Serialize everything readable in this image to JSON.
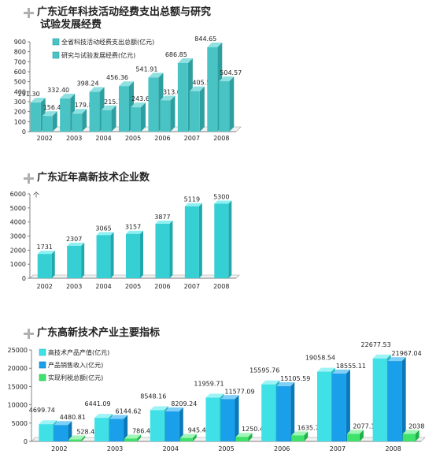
{
  "colors": {
    "teal_front": "#49c3c4",
    "teal_side": "#2e9fa0",
    "teal_top": "#8fe0e0",
    "cyan_front": "#3fe0e6",
    "cyan_side": "#23b7bd",
    "cyan_top": "#9df3f6",
    "sky_front": "#1aa0ea",
    "sky_side": "#0b78b8",
    "sky_top": "#7fcff8",
    "green_front": "#3fe36b",
    "green_side": "#1fb24a",
    "green_top": "#a2f5b8",
    "single_front": "#36cfd3",
    "single_side": "#21a8ac",
    "single_top": "#8ff0f2"
  },
  "chart1": {
    "title_line1": "广东近年科技活动经费支出总额与研究",
    "title_line2": "试验发展经费"
  },
  "chart2": {
    "title": "广东近年高新技术企业数",
    "unit": "个"
  },
  "chart3": {
    "title": "广东高新技术产业主要指标"
  },
  "chart_data": [
    {
      "type": "bar",
      "categories": [
        "2002",
        "2003",
        "2004",
        "2005",
        "2006",
        "2007",
        "2008"
      ],
      "series": [
        {
          "name": "全省科技活动经费支出总额(亿元)",
          "values": [
            291.3,
            332.4,
            398.24,
            456.36,
            541.91,
            686.85,
            844.65
          ],
          "labels": [
            "291.30",
            "332.40",
            "398.24",
            "456.36",
            "541.91",
            "686.85",
            "844.65"
          ]
        },
        {
          "name": "研究与试验发展经费(亿元)",
          "values": [
            156.45,
            179.8,
            215.1,
            243.6,
            313.0,
            405.5,
            504.57
          ],
          "labels": [
            "156.45",
            "179.8",
            "215.1",
            "243.60",
            "313.0",
            "405.5",
            "504.57"
          ]
        }
      ],
      "yticks": [
        "0",
        "100",
        "200",
        "300",
        "400",
        "500",
        "600",
        "700",
        "800",
        "900"
      ],
      "ylim": [
        0,
        900
      ],
      "legend_position": "top-left"
    },
    {
      "type": "bar",
      "categories": [
        "2002",
        "2003",
        "2004",
        "2005",
        "2006",
        "2007",
        "2008"
      ],
      "values": [
        1731,
        2307,
        3065,
        3157,
        3877,
        5119,
        5300
      ],
      "labels": [
        "1731",
        "2307",
        "3065",
        "3157",
        "3877",
        "5119",
        "5300"
      ],
      "yticks": [
        "0",
        "1000",
        "2000",
        "3000",
        "4000",
        "5000",
        "6000"
      ],
      "ylim": [
        0,
        6000
      ]
    },
    {
      "type": "bar",
      "categories": [
        "2002",
        "2003",
        "2004",
        "2005",
        "2006",
        "2007",
        "2008"
      ],
      "series": [
        {
          "name": "高技术产品产值(亿元)",
          "values": [
            4699.74,
            6441.09,
            8548.16,
            11959.71,
            15595.76,
            19058.54,
            22677.53
          ],
          "labels": [
            "4699.74",
            "6441.09",
            "8548.16",
            "11959.71",
            "15595.76",
            "19058.54",
            "22677.53"
          ]
        },
        {
          "name": "产品销售收入(亿元)",
          "values": [
            4480.81,
            6144.62,
            8209.24,
            11577.09,
            15105.59,
            18555.11,
            21967.04
          ],
          "labels": [
            "4480.81",
            "6144.62",
            "8209.24",
            "11577.09",
            "15105.59",
            "18555.11",
            "21967.04"
          ]
        },
        {
          "name": "实现利税总额(亿元)",
          "values": [
            528.42,
            786.42,
            945.47,
            1250.41,
            1635.74,
            2077.18,
            2038.19
          ],
          "labels": [
            "528.42",
            "786.42",
            "945.47",
            "1250.41",
            "1635.74",
            "2077.18",
            "2038.19"
          ]
        }
      ],
      "yticks": [
        "0",
        "5000",
        "10000",
        "15000",
        "20000",
        "25000"
      ],
      "ylim": [
        0,
        25000
      ],
      "legend_position": "top-left"
    }
  ]
}
